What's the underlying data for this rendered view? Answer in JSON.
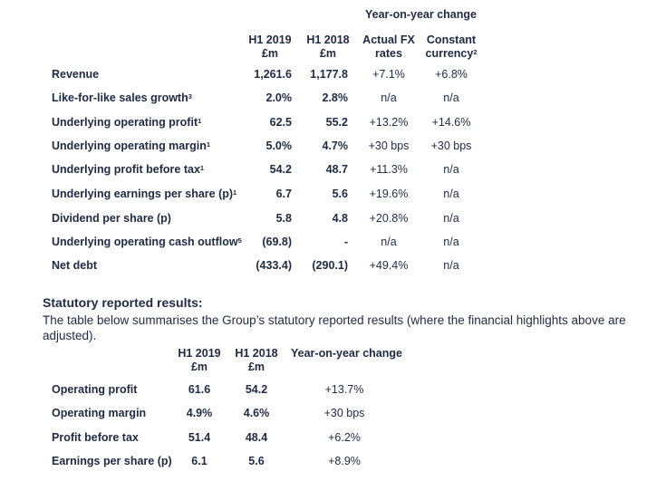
{
  "table1": {
    "group_header": "Year-on-year change",
    "headers": [
      {
        "line1": "H1 2019",
        "line2": "£m"
      },
      {
        "line1": "H1 2018",
        "line2": "£m"
      },
      {
        "line1": "Actual FX",
        "line2": "rates"
      },
      {
        "line1": "Constant",
        "line2": "currency",
        "sup": "2"
      }
    ],
    "rows": [
      {
        "label": "Revenue",
        "sup": "",
        "values": [
          "1,261.6",
          "1,177.8",
          "+7.1%",
          "+6.8%"
        ]
      },
      {
        "label": "Like-for-like sales growth",
        "sup": "3",
        "values": [
          "2.0%",
          "2.8%",
          "n/a",
          "n/a"
        ]
      },
      {
        "label": "Underlying operating profit",
        "sup": "1",
        "values": [
          "62.5",
          "55.2",
          "+13.2%",
          "+14.6%"
        ]
      },
      {
        "label": "Underlying operating margin",
        "sup": "1",
        "values": [
          "5.0%",
          "4.7%",
          "+30 bps",
          "+30 bps"
        ]
      },
      {
        "label": "Underlying profit before tax",
        "sup": "1",
        "values": [
          "54.2",
          "48.7",
          "+11.3%",
          "n/a"
        ]
      },
      {
        "label": "Underlying earnings per share (p)",
        "sup": "1",
        "values": [
          "6.7",
          "5.6",
          "+19.6%",
          "n/a"
        ]
      },
      {
        "label": "Dividend per share (p)",
        "sup": "",
        "values": [
          "5.8",
          "4.8",
          "+20.8%",
          "n/a"
        ]
      },
      {
        "label": "Underlying operating cash outflow",
        "sup": "5",
        "values": [
          "(69.8)",
          "-",
          "n/a",
          "n/a"
        ]
      },
      {
        "label": "Net debt",
        "sup": "",
        "values": [
          "(433.4)",
          "(290.1)",
          "+49.4%",
          "n/a"
        ]
      }
    ]
  },
  "statutory": {
    "heading": "Statutory reported results:",
    "paragraph": "The table below summarises the Group’s statutory reported results (where the financial highlights above are adjusted)."
  },
  "table2": {
    "headers": [
      {
        "line1": "H1 2019",
        "line2": "£m"
      },
      {
        "line1": "H1 2018",
        "line2": "£m"
      },
      {
        "line1": "Year-on-year change",
        "line2": ""
      }
    ],
    "rows": [
      {
        "label": "Operating profit",
        "values": [
          "61.6",
          "54.2",
          "+13.7%"
        ]
      },
      {
        "label": "Operating margin",
        "values": [
          "4.9%",
          "4.6%",
          "+30 bps"
        ]
      },
      {
        "label": "Profit before tax",
        "values": [
          "51.4",
          "48.4",
          "+6.2%"
        ]
      },
      {
        "label": "Earnings per share (p)",
        "values": [
          "6.1",
          "5.6",
          "+8.9%"
        ]
      }
    ]
  }
}
